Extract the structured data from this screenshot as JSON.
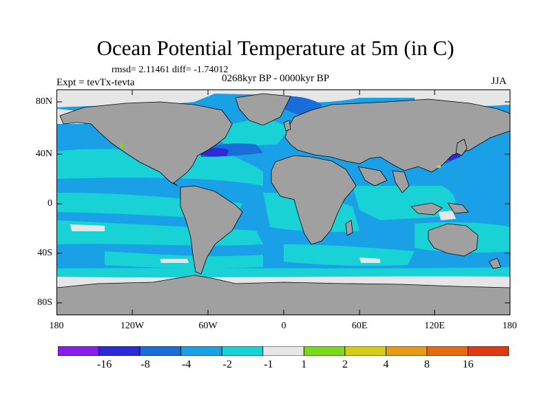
{
  "title": "Ocean Potential Temperature at 5m (in C)",
  "stats": "rmsd= 2.11461 diff= -1.74012",
  "period": "0268kyr BP - 0000kyr BP",
  "experiment": "Expt = tevTx-tevta",
  "season": "JJA",
  "y_axis": {
    "labels": [
      "80N",
      "40N",
      "0",
      "40S",
      "80S"
    ]
  },
  "x_axis": {
    "labels": [
      "180",
      "120W",
      "60W",
      "0",
      "60E",
      "120E",
      "180"
    ]
  },
  "colorbar": {
    "labels": [
      "-16",
      "-8",
      "-4",
      "-2",
      "-1",
      "1",
      "2",
      "4",
      "8",
      "16"
    ],
    "colors": [
      "#8a1ee6",
      "#2a2ad8",
      "#1a6cd8",
      "#1aa0e6",
      "#18d2d6",
      "#e6e6e6",
      "#7cd81c",
      "#d6cc18",
      "#e69a18",
      "#e66a12",
      "#e03a12"
    ]
  },
  "map_colors": {
    "land": "#a0a0a0",
    "ocean_base": "#1aa0e6",
    "cool_minus1": "#18d2d6",
    "near_zero": "#e6e6e6",
    "cool_minus4": "#1a6cd8",
    "cool_minus8": "#2a2ad8",
    "warm_plus2": "#7cd81c",
    "warm_plus4": "#d6cc18"
  }
}
